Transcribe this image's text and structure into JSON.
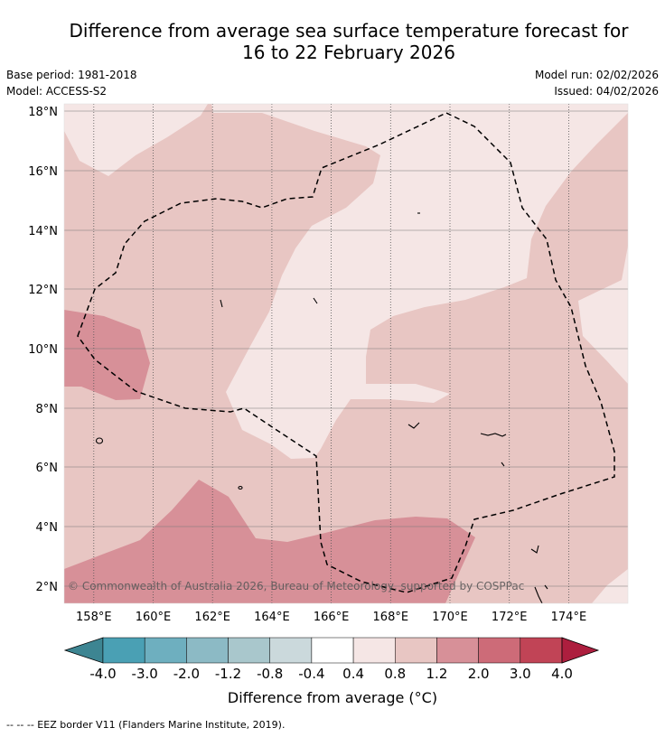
{
  "title_line1": "Difference from average sea surface temperature forecast for",
  "title_line2": "16 to 22 February 2026",
  "meta": {
    "base_period": "Base period: 1981-2018",
    "model": "Model: ACCESS-S2",
    "model_run": "Model run: 02/02/2026",
    "issued": "Issued: 04/02/2026"
  },
  "map": {
    "lat_range": [
      1.5,
      18.2
    ],
    "lon_range": [
      157.0,
      176.0
    ],
    "lat_ticks": [
      {
        "value": 18,
        "label": "18°N"
      },
      {
        "value": 16,
        "label": "16°N"
      },
      {
        "value": 14,
        "label": "14°N"
      },
      {
        "value": 12,
        "label": "12°N"
      },
      {
        "value": 10,
        "label": "10°N"
      },
      {
        "value": 8,
        "label": "8°N"
      },
      {
        "value": 6,
        "label": "6°N"
      },
      {
        "value": 4,
        "label": "4°N"
      },
      {
        "value": 2,
        "label": "2°N"
      }
    ],
    "lon_ticks": [
      {
        "value": 158,
        "label": "158°E"
      },
      {
        "value": 160,
        "label": "160°E"
      },
      {
        "value": 162,
        "label": "162°E"
      },
      {
        "value": 164,
        "label": "164°E"
      },
      {
        "value": 166,
        "label": "166°E"
      },
      {
        "value": 168,
        "label": "168°E"
      },
      {
        "value": 170,
        "label": "170°E"
      },
      {
        "value": 172,
        "label": "172°E"
      },
      {
        "value": 174,
        "label": "174°E"
      }
    ],
    "copyright": "© Commonwealth of Australia 2026, Bureau of Meteorology, supported by COSPPac",
    "grid": true
  },
  "colorbar": {
    "bins": [
      {
        "from": -4.0,
        "to": -3.0,
        "color": "#4aa0b4"
      },
      {
        "from": -3.0,
        "to": -2.0,
        "color": "#6eafbf"
      },
      {
        "from": -2.0,
        "to": -1.2,
        "color": "#8cbac5"
      },
      {
        "from": -1.2,
        "to": -0.8,
        "color": "#a9c7cc"
      },
      {
        "from": -0.8,
        "to": -0.4,
        "color": "#cbd9dc"
      },
      {
        "from": -0.4,
        "to": 0.4,
        "color": "#ffffff"
      },
      {
        "from": 0.4,
        "to": 0.8,
        "color": "#f5e6e5"
      },
      {
        "from": 0.8,
        "to": 1.2,
        "color": "#e8c6c3"
      },
      {
        "from": 1.2,
        "to": 2.0,
        "color": "#d79098"
      },
      {
        "from": 2.0,
        "to": 3.0,
        "color": "#cd6b78"
      },
      {
        "from": 3.0,
        "to": 4.0,
        "color": "#c14456"
      }
    ],
    "under_color": "#3d8592",
    "over_color": "#ad1e3e",
    "tick_labels": [
      "-4.0",
      "-3.0",
      "-2.0",
      "-1.2",
      "-0.8",
      "-0.4",
      "0.4",
      "0.8",
      "1.2",
      "2.0",
      "3.0",
      "4.0"
    ],
    "label": "Difference from average (°C)"
  },
  "legend_footnote": "--  --  -- EEZ border V11 (Flanders Marine Institute, 2019).",
  "colors": {
    "band_0_4_0_8": "#f5e6e5",
    "band_0_8_1_2": "#e8c6c3",
    "band_1_2_2_0": "#d79098"
  }
}
